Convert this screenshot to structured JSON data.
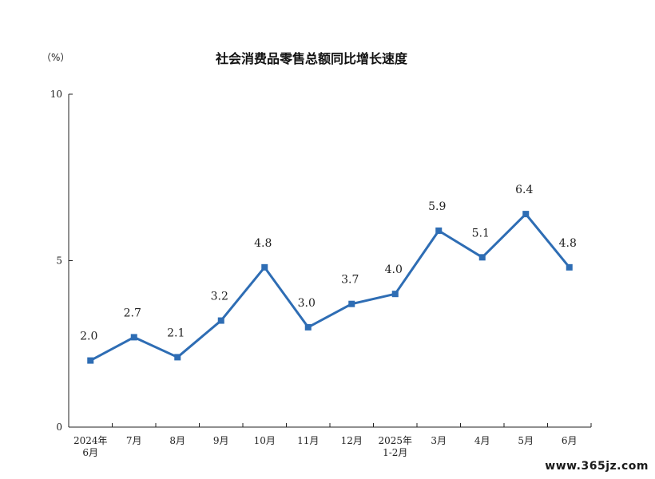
{
  "unit_label": "（%）",
  "watermark": "www.365jz.com",
  "chart_data": {
    "type": "line",
    "title": "社会消费品零售总额同比增长速度",
    "categories": [
      [
        "2024年",
        "6月"
      ],
      [
        "7月"
      ],
      [
        "8月"
      ],
      [
        "9月"
      ],
      [
        "10月"
      ],
      [
        "11月"
      ],
      [
        "12月"
      ],
      [
        "2025年",
        "1-2月"
      ],
      [
        "3月"
      ],
      [
        "4月"
      ],
      [
        "5月"
      ],
      [
        "6月"
      ]
    ],
    "values": [
      2.0,
      2.7,
      2.1,
      3.2,
      4.8,
      3.0,
      3.7,
      4.0,
      5.9,
      5.1,
      6.4,
      4.8
    ],
    "data_labels": [
      "2.0",
      "2.7",
      "2.1",
      "3.2",
      "4.8",
      "3.0",
      "3.7",
      "4.0",
      "5.9",
      "5.1",
      "6.4",
      "4.8"
    ],
    "yticks": [
      "0",
      "5",
      "10"
    ],
    "ylim": [
      0,
      10
    ],
    "xlabel": "",
    "ylabel": "",
    "grid": false,
    "line_color": "#2e6db4"
  }
}
